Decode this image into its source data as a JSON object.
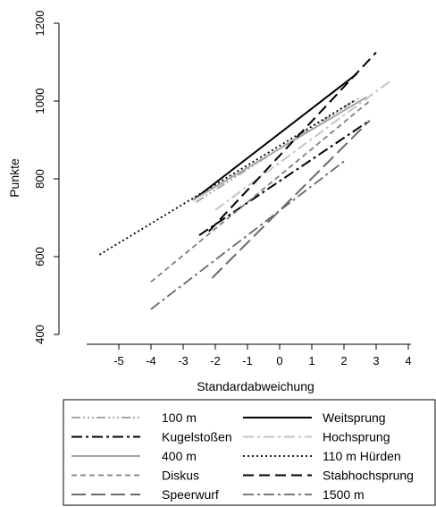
{
  "chart_data": {
    "type": "line",
    "title": "",
    "xlabel": "Standardabweichung",
    "ylabel": "Punkte",
    "xlim": [
      -6,
      4.5
    ],
    "ylim": [
      400,
      1220
    ],
    "x_ticks": [
      -5,
      -4,
      -3,
      -2,
      -1,
      0,
      1,
      2,
      3,
      4
    ],
    "y_ticks": [
      400,
      600,
      800,
      1000,
      1200
    ],
    "grid": false,
    "legend_position": "bottom",
    "series": [
      {
        "name": "100 m",
        "color": "#a6a6a6",
        "dash": "10,3,2,3,2,3,2,3",
        "width": 2,
        "x": [
          -2.6,
          2.5
        ],
        "y": [
          740,
          1010
        ]
      },
      {
        "name": "Weitsprung",
        "color": "#000000",
        "dash": "",
        "width": 2,
        "x": [
          -2.7,
          2.4
        ],
        "y": [
          745,
          1070
        ]
      },
      {
        "name": "Kugelstoßen",
        "color": "#000000",
        "dash": "12,4,3,4",
        "width": 2,
        "x": [
          -2.5,
          2.8
        ],
        "y": [
          655,
          950
        ]
      },
      {
        "name": "Hochsprung",
        "color": "#c4c4c4",
        "dash": "12,4,3,4",
        "width": 2,
        "x": [
          -2.0,
          3.5
        ],
        "y": [
          720,
          1055
        ]
      },
      {
        "name": "400 m",
        "color": "#a6a6a6",
        "dash": "",
        "width": 2,
        "x": [
          -2.7,
          2.7
        ],
        "y": [
          745,
          1010
        ]
      },
      {
        "name": "110 m Hürden",
        "color": "#000000",
        "dash": "2,3",
        "width": 1.8,
        "x": [
          -5.6,
          2.3
        ],
        "y": [
          605,
          1000
        ]
      },
      {
        "name": "Diskus",
        "color": "#7f7f7f",
        "dash": "6,4",
        "width": 1.8,
        "x": [
          -4.0,
          2.8
        ],
        "y": [
          535,
          1000
        ]
      },
      {
        "name": "Stabhochsprung",
        "color": "#000000",
        "dash": "12,6",
        "width": 2,
        "x": [
          -2.2,
          3.0
        ],
        "y": [
          665,
          1125
        ]
      },
      {
        "name": "Speerwurf",
        "color": "#696969",
        "dash": "16,6",
        "width": 2,
        "x": [
          -2.1,
          2.8
        ],
        "y": [
          545,
          950
        ]
      },
      {
        "name": "1500 m",
        "color": "#696969",
        "dash": "12,4,3,4",
        "width": 1.8,
        "x": [
          -4.0,
          2.0
        ],
        "y": [
          465,
          845
        ]
      }
    ]
  }
}
